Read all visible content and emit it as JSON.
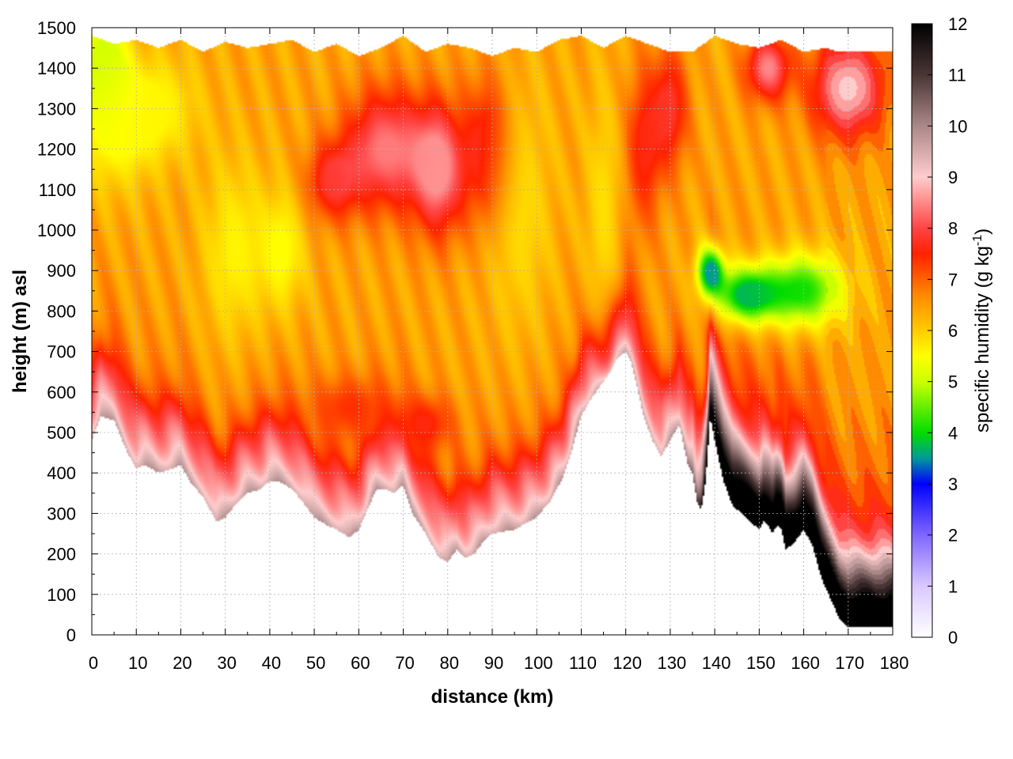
{
  "chart_data": {
    "type": "heatmap",
    "title": "",
    "xlabel": "distance (km)",
    "ylabel": "height (m) asl",
    "colorbar_label": "specific humidity (g kg",
    "colorbar_label_sup": "-1",
    "colorbar_label_close": ")",
    "xlim": [
      0,
      180
    ],
    "ylim": [
      0,
      1500
    ],
    "clim": [
      0,
      12
    ],
    "x_ticks": [
      "0",
      "10",
      "20",
      "30",
      "40",
      "50",
      "60",
      "70",
      "80",
      "90",
      "100",
      "110",
      "120",
      "130",
      "140",
      "150",
      "160",
      "170",
      "180"
    ],
    "y_ticks": [
      "0",
      "100",
      "200",
      "300",
      "400",
      "500",
      "600",
      "700",
      "800",
      "900",
      "1000",
      "1100",
      "1200",
      "1300",
      "1400",
      "1500"
    ],
    "c_ticks": [
      "0",
      "1",
      "2",
      "3",
      "4",
      "5",
      "6",
      "7",
      "8",
      "9",
      "10",
      "11",
      "12"
    ],
    "grid": true,
    "colormap": [
      {
        "v": 0,
        "color": "#ffffff"
      },
      {
        "v": 1,
        "color": "#d9c8ff"
      },
      {
        "v": 2,
        "color": "#7f66ff"
      },
      {
        "v": 3,
        "color": "#0000ff"
      },
      {
        "v": 3.5,
        "color": "#009999"
      },
      {
        "v": 4,
        "color": "#00dd00"
      },
      {
        "v": 5,
        "color": "#ccff00"
      },
      {
        "v": 5.5,
        "color": "#ffff00"
      },
      {
        "v": 6,
        "color": "#ffcc00"
      },
      {
        "v": 6.7,
        "color": "#ff8800"
      },
      {
        "v": 7.5,
        "color": "#ff2200"
      },
      {
        "v": 8,
        "color": "#ff4444"
      },
      {
        "v": 8.5,
        "color": "#ff8888"
      },
      {
        "v": 9,
        "color": "#ffcccc"
      },
      {
        "v": 10,
        "color": "#aa8888"
      },
      {
        "v": 11,
        "color": "#4a3535"
      },
      {
        "v": 12,
        "color": "#000000"
      }
    ],
    "terrain": {
      "x": [
        0,
        2,
        5,
        8,
        10,
        12,
        15,
        18,
        20,
        22,
        25,
        27,
        28,
        30,
        33,
        35,
        38,
        40,
        42,
        45,
        48,
        50,
        53,
        55,
        58,
        60,
        62,
        64,
        66,
        68,
        70,
        72,
        75,
        78,
        80,
        82,
        84,
        86,
        88,
        90,
        95,
        100,
        103,
        106,
        108,
        110,
        112,
        114,
        116,
        118,
        120,
        121,
        122,
        123,
        124,
        126,
        128,
        130,
        132,
        133,
        134,
        135,
        136,
        137,
        138,
        139,
        140,
        142,
        144,
        146,
        148,
        150,
        151,
        152,
        153,
        154,
        155,
        156,
        158,
        160,
        162,
        164,
        166,
        168,
        170,
        175,
        180
      ],
      "y": [
        480,
        540,
        530,
        450,
        410,
        420,
        400,
        410,
        420,
        380,
        340,
        300,
        280,
        290,
        330,
        350,
        360,
        380,
        380,
        360,
        320,
        290,
        270,
        260,
        240,
        260,
        310,
        360,
        360,
        350,
        370,
        300,
        250,
        190,
        180,
        210,
        190,
        200,
        230,
        250,
        260,
        290,
        330,
        390,
        460,
        540,
        580,
        610,
        640,
        680,
        700,
        680,
        640,
        590,
        540,
        480,
        440,
        480,
        520,
        470,
        420,
        400,
        330,
        310,
        380,
        540,
        480,
        380,
        320,
        300,
        280,
        260,
        280,
        270,
        250,
        270,
        260,
        210,
        230,
        260,
        220,
        140,
        90,
        40,
        20,
        20,
        20
      ]
    },
    "top_edge": {
      "x": [
        0,
        5,
        10,
        15,
        20,
        25,
        30,
        35,
        40,
        45,
        50,
        55,
        60,
        65,
        70,
        75,
        80,
        85,
        90,
        95,
        100,
        105,
        110,
        115,
        120,
        125,
        130,
        135,
        140,
        145,
        150,
        155,
        160,
        165,
        168,
        180
      ],
      "y": [
        1480,
        1460,
        1470,
        1450,
        1470,
        1440,
        1465,
        1450,
        1460,
        1470,
        1440,
        1460,
        1430,
        1450,
        1480,
        1440,
        1460,
        1450,
        1430,
        1450,
        1440,
        1470,
        1480,
        1450,
        1480,
        1460,
        1440,
        1440,
        1480,
        1460,
        1450,
        1470,
        1440,
        1450,
        1440,
        1440
      ]
    },
    "features": [
      {
        "x": 3,
        "y": 1420,
        "v": 5.0,
        "sx": 5,
        "sy": 130
      },
      {
        "x": 5,
        "y": 1250,
        "v": 5.5,
        "sx": 8,
        "sy": 150
      },
      {
        "x": 15,
        "y": 1300,
        "v": 5.6,
        "sx": 9,
        "sy": 130
      },
      {
        "x": 32,
        "y": 950,
        "v": 5.6,
        "sx": 7,
        "sy": 220
      },
      {
        "x": 43,
        "y": 950,
        "v": 5.5,
        "sx": 5,
        "sy": 150
      },
      {
        "x": 54,
        "y": 1120,
        "v": 7.8,
        "sx": 6,
        "sy": 100
      },
      {
        "x": 66,
        "y": 1200,
        "v": 8.4,
        "sx": 9,
        "sy": 150
      },
      {
        "x": 78,
        "y": 1150,
        "v": 8.6,
        "sx": 6,
        "sy": 160
      },
      {
        "x": 89,
        "y": 1200,
        "v": 7.8,
        "sx": 5,
        "sy": 180
      },
      {
        "x": 96,
        "y": 1050,
        "v": 5.8,
        "sx": 7,
        "sy": 300
      },
      {
        "x": 115,
        "y": 1050,
        "v": 5.8,
        "sx": 4,
        "sy": 300
      },
      {
        "x": 124,
        "y": 1200,
        "v": 7.6,
        "sx": 4,
        "sy": 200
      },
      {
        "x": 130,
        "y": 1300,
        "v": 7.8,
        "sx": 4,
        "sy": 150
      },
      {
        "x": 139,
        "y": 900,
        "v": 3.5,
        "sx": 3,
        "sy": 60
      },
      {
        "x": 147,
        "y": 840,
        "v": 3.7,
        "sx": 7,
        "sy": 70
      },
      {
        "x": 160,
        "y": 850,
        "v": 4.1,
        "sx": 9,
        "sy": 90
      },
      {
        "x": 152,
        "y": 1400,
        "v": 8.5,
        "sx": 5,
        "sy": 80
      },
      {
        "x": 170,
        "y": 1350,
        "v": 9.0,
        "sx": 8,
        "sy": 120
      },
      {
        "x": 58,
        "y": 560,
        "v": 7.4,
        "sx": 9,
        "sy": 80
      },
      {
        "x": 75,
        "y": 520,
        "v": 7.6,
        "sx": 6,
        "sy": 70
      }
    ]
  }
}
